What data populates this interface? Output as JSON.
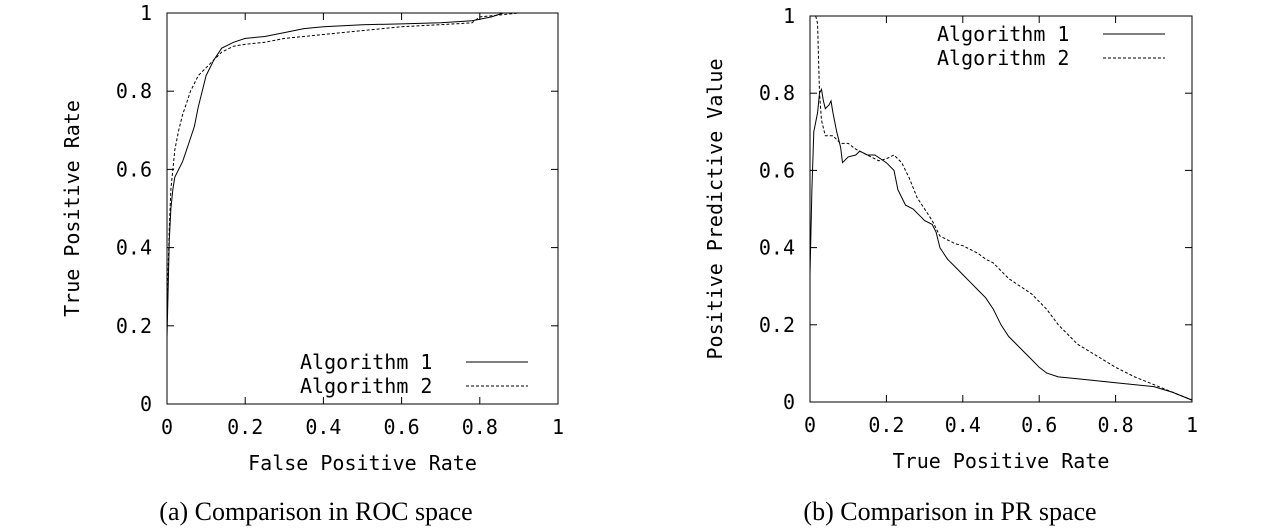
{
  "captions": {
    "a": "(a) Comparison in ROC space",
    "b": "(b) Comparison in PR space"
  },
  "chart_data": [
    {
      "id": "roc",
      "type": "line",
      "xlabel": "False Positive Rate",
      "ylabel": "True Positive Rate",
      "xlim": [
        0,
        1
      ],
      "ylim": [
        0,
        1
      ],
      "xticks": [
        "0",
        "0.2",
        "0.4",
        "0.6",
        "0.8",
        "1"
      ],
      "yticks": [
        "0",
        "0.2",
        "0.4",
        "0.6",
        "0.8",
        "1"
      ],
      "legend_position": "bottom-right",
      "series": [
        {
          "name": "Algorithm 1",
          "style": "solid",
          "points": [
            [
              0,
              0.17
            ],
            [
              0.003,
              0.3
            ],
            [
              0.006,
              0.42
            ],
            [
              0.01,
              0.5
            ],
            [
              0.015,
              0.55
            ],
            [
              0.02,
              0.58
            ],
            [
              0.03,
              0.6
            ],
            [
              0.04,
              0.62
            ],
            [
              0.05,
              0.65
            ],
            [
              0.06,
              0.68
            ],
            [
              0.07,
              0.71
            ],
            [
              0.08,
              0.76
            ],
            [
              0.09,
              0.8
            ],
            [
              0.1,
              0.84
            ],
            [
              0.12,
              0.88
            ],
            [
              0.14,
              0.91
            ],
            [
              0.17,
              0.925
            ],
            [
              0.2,
              0.935
            ],
            [
              0.25,
              0.94
            ],
            [
              0.3,
              0.95
            ],
            [
              0.35,
              0.96
            ],
            [
              0.4,
              0.965
            ],
            [
              0.5,
              0.97
            ],
            [
              0.6,
              0.972
            ],
            [
              0.7,
              0.975
            ],
            [
              0.78,
              0.98
            ],
            [
              0.83,
              0.99
            ],
            [
              0.86,
              1.0
            ],
            [
              1.0,
              1.0
            ]
          ]
        },
        {
          "name": "Algorithm 2",
          "style": "dashed",
          "points": [
            [
              0,
              0.2
            ],
            [
              0.003,
              0.35
            ],
            [
              0.006,
              0.45
            ],
            [
              0.01,
              0.55
            ],
            [
              0.015,
              0.6
            ],
            [
              0.02,
              0.65
            ],
            [
              0.03,
              0.7
            ],
            [
              0.04,
              0.74
            ],
            [
              0.05,
              0.77
            ],
            [
              0.06,
              0.8
            ],
            [
              0.08,
              0.84
            ],
            [
              0.1,
              0.86
            ],
            [
              0.12,
              0.88
            ],
            [
              0.14,
              0.9
            ],
            [
              0.17,
              0.915
            ],
            [
              0.2,
              0.92
            ],
            [
              0.25,
              0.925
            ],
            [
              0.3,
              0.935
            ],
            [
              0.35,
              0.94
            ],
            [
              0.4,
              0.945
            ],
            [
              0.5,
              0.955
            ],
            [
              0.6,
              0.965
            ],
            [
              0.7,
              0.97
            ],
            [
              0.78,
              0.975
            ],
            [
              0.8,
              0.99
            ],
            [
              0.85,
              0.995
            ],
            [
              0.9,
              1.0
            ],
            [
              1.0,
              1.0
            ]
          ]
        }
      ]
    },
    {
      "id": "pr",
      "type": "line",
      "xlabel": "True Positive Rate",
      "ylabel": "Positive Predictive Value",
      "xlim": [
        0,
        1
      ],
      "ylim": [
        0,
        1
      ],
      "xticks": [
        "0",
        "0.2",
        "0.4",
        "0.6",
        "0.8",
        "1"
      ],
      "yticks": [
        "0",
        "0.2",
        "0.4",
        "0.6",
        "0.8",
        "1"
      ],
      "legend_position": "top-right",
      "series": [
        {
          "name": "Algorithm 1",
          "style": "solid",
          "points": [
            [
              0,
              0.33
            ],
            [
              0.005,
              0.55
            ],
            [
              0.01,
              0.7
            ],
            [
              0.02,
              0.75
            ],
            [
              0.025,
              0.8
            ],
            [
              0.03,
              0.81
            ],
            [
              0.035,
              0.78
            ],
            [
              0.04,
              0.76
            ],
            [
              0.05,
              0.77
            ],
            [
              0.055,
              0.78
            ],
            [
              0.06,
              0.75
            ],
            [
              0.07,
              0.7
            ],
            [
              0.08,
              0.66
            ],
            [
              0.085,
              0.62
            ],
            [
              0.1,
              0.635
            ],
            [
              0.12,
              0.64
            ],
            [
              0.13,
              0.65
            ],
            [
              0.15,
              0.64
            ],
            [
              0.17,
              0.64
            ],
            [
              0.2,
              0.62
            ],
            [
              0.22,
              0.6
            ],
            [
              0.23,
              0.55
            ],
            [
              0.25,
              0.51
            ],
            [
              0.27,
              0.5
            ],
            [
              0.29,
              0.48
            ],
            [
              0.3,
              0.47
            ],
            [
              0.32,
              0.46
            ],
            [
              0.33,
              0.44
            ],
            [
              0.34,
              0.4
            ],
            [
              0.36,
              0.37
            ],
            [
              0.38,
              0.35
            ],
            [
              0.4,
              0.33
            ],
            [
              0.42,
              0.31
            ],
            [
              0.44,
              0.29
            ],
            [
              0.46,
              0.27
            ],
            [
              0.48,
              0.24
            ],
            [
              0.5,
              0.2
            ],
            [
              0.52,
              0.17
            ],
            [
              0.55,
              0.14
            ],
            [
              0.58,
              0.11
            ],
            [
              0.6,
              0.09
            ],
            [
              0.62,
              0.075
            ],
            [
              0.65,
              0.065
            ],
            [
              0.7,
              0.06
            ],
            [
              0.8,
              0.05
            ],
            [
              0.9,
              0.04
            ],
            [
              0.95,
              0.025
            ],
            [
              1.0,
              0.005
            ]
          ]
        },
        {
          "name": "Algorithm 2",
          "style": "dashed",
          "points": [
            [
              0.015,
              1.0
            ],
            [
              0.02,
              0.98
            ],
            [
              0.022,
              0.9
            ],
            [
              0.025,
              0.8
            ],
            [
              0.03,
              0.73
            ],
            [
              0.04,
              0.69
            ],
            [
              0.06,
              0.69
            ],
            [
              0.08,
              0.67
            ],
            [
              0.1,
              0.67
            ],
            [
              0.12,
              0.655
            ],
            [
              0.15,
              0.64
            ],
            [
              0.18,
              0.625
            ],
            [
              0.2,
              0.63
            ],
            [
              0.22,
              0.64
            ],
            [
              0.24,
              0.62
            ],
            [
              0.26,
              0.58
            ],
            [
              0.28,
              0.53
            ],
            [
              0.3,
              0.5
            ],
            [
              0.32,
              0.47
            ],
            [
              0.34,
              0.43
            ],
            [
              0.36,
              0.42
            ],
            [
              0.38,
              0.41
            ],
            [
              0.4,
              0.405
            ],
            [
              0.42,
              0.395
            ],
            [
              0.44,
              0.385
            ],
            [
              0.46,
              0.37
            ],
            [
              0.48,
              0.36
            ],
            [
              0.5,
              0.34
            ],
            [
              0.52,
              0.32
            ],
            [
              0.55,
              0.3
            ],
            [
              0.58,
              0.28
            ],
            [
              0.6,
              0.26
            ],
            [
              0.62,
              0.24
            ],
            [
              0.65,
              0.2
            ],
            [
              0.68,
              0.17
            ],
            [
              0.7,
              0.15
            ],
            [
              0.75,
              0.12
            ],
            [
              0.8,
              0.09
            ],
            [
              0.85,
              0.065
            ],
            [
              0.9,
              0.045
            ],
            [
              0.95,
              0.025
            ],
            [
              1.0,
              0.005
            ]
          ]
        }
      ]
    }
  ]
}
